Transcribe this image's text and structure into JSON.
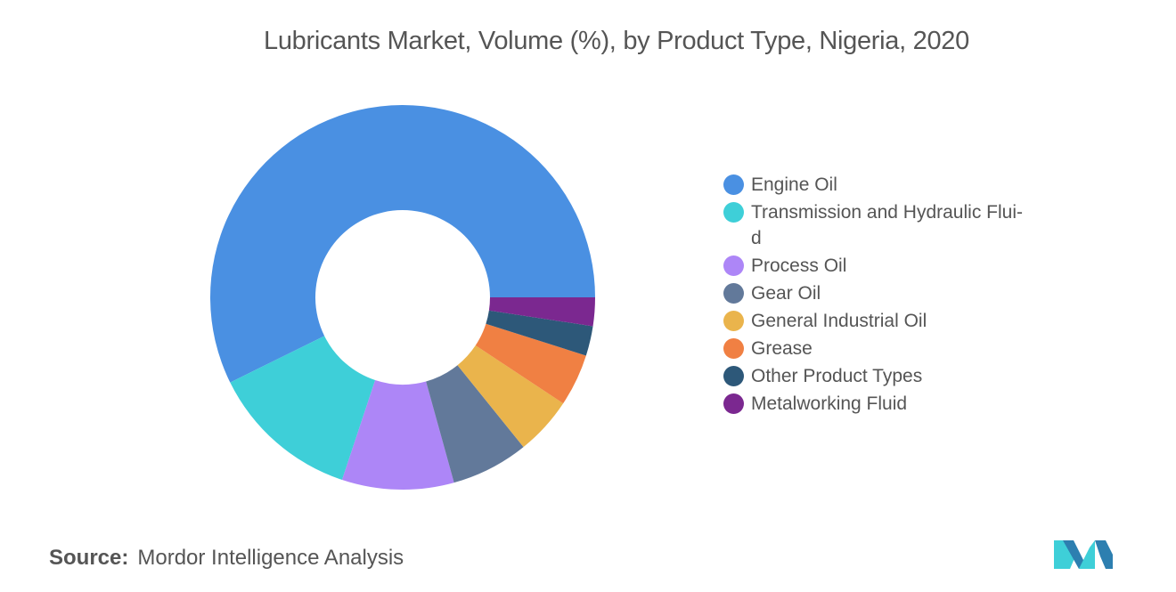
{
  "title": "Lubricants Market, Volume (%), by Product Type, Nigeria, 2020",
  "source": {
    "label": "Source:",
    "text": "Mordor Intelligence Analysis"
  },
  "chart_data": {
    "type": "pie",
    "title": "Lubricants Market, Volume (%), by Product Type, Nigeria, 2020",
    "donut": true,
    "legend_position": "right",
    "categories": [
      "Engine Oil",
      "Transmission and Hydraulic Fluid",
      "Process Oil",
      "Gear Oil",
      "General Industrial Oil",
      "Grease",
      "Other Product Types",
      "Metalworking Fluid"
    ],
    "legend_labels": [
      "Engine Oil",
      "Transmission and Hydraulic Flui-d",
      "Process Oil",
      "Gear Oil",
      "General Industrial Oil",
      "Grease",
      "Other Product Types",
      "Metalworking Fluid"
    ],
    "values": [
      57.3,
      12.6,
      9.4,
      6.5,
      4.9,
      4.4,
      2.5,
      2.4
    ],
    "colors": [
      "#4a90e2",
      "#3ecfd8",
      "#ad86f7",
      "#62799a",
      "#eab44c",
      "#f08043",
      "#2d5879",
      "#7b2890"
    ]
  }
}
